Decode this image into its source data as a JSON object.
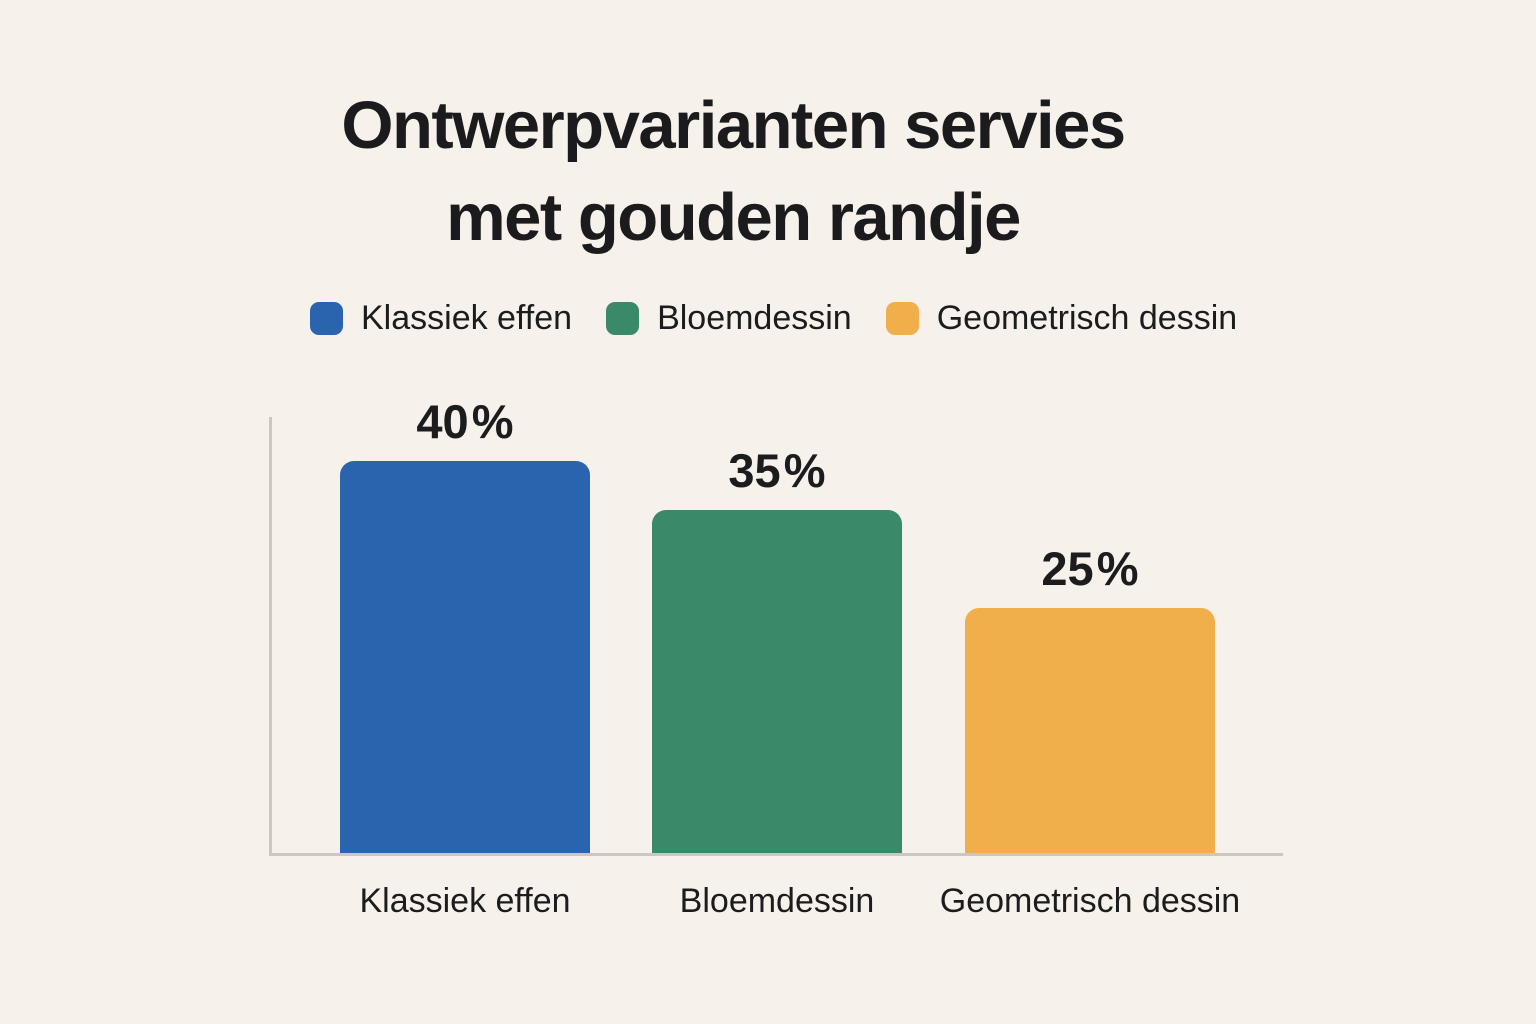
{
  "title": {
    "line1": "Ontwerpvarianten servies",
    "line2": "met gouden randje"
  },
  "colors": {
    "background": "#F6F1EA",
    "text": "#1B1B1D",
    "axis": "#CCC7C0",
    "blue": "#2A63AE",
    "green": "#3A8A6A",
    "yellow": "#F1AF4B"
  },
  "legend": {
    "position": "top",
    "items": [
      {
        "label": "Klassiek effen",
        "color": "#2A63AE"
      },
      {
        "label": "Bloemdessin",
        "color": "#3A8A6A"
      },
      {
        "label": "Geometrisch dessin",
        "color": "#F1AF4B"
      }
    ]
  },
  "chart_data": {
    "type": "bar",
    "title": "Ontwerpvarianten servies met gouden randje",
    "categories": [
      "Klassiek effen",
      "Bloemdessin",
      "Geometrisch dessin"
    ],
    "values": [
      40,
      35,
      25
    ],
    "unit": "%",
    "ylim": [
      0,
      40
    ],
    "grid": false,
    "y_axis_ticks": [],
    "legend_position": "top",
    "bars": [
      {
        "category": "Klassiek effen",
        "value": 40,
        "display_value": "40 %",
        "color": "#2A63AE"
      },
      {
        "category": "Bloemdessin",
        "value": 35,
        "display_value": "35 %",
        "color": "#3A8A6A"
      },
      {
        "category": "Geometrisch dessin",
        "value": 25,
        "display_value": "25 %",
        "color": "#F1AF4B"
      }
    ]
  }
}
